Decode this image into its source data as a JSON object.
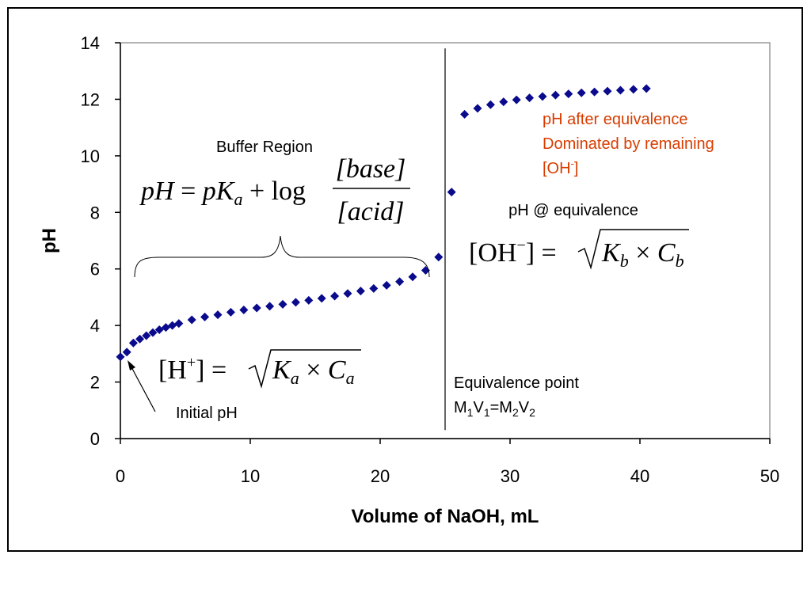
{
  "colors": {
    "series": "#0a0a8c",
    "accent_red": "#d83c00",
    "plot_border": "#9a9a9a",
    "axis": "#000000"
  },
  "chart_data": {
    "type": "scatter",
    "title": "",
    "xlabel": "Volume of NaOH, mL",
    "ylabel": "pH",
    "xlim": [
      0,
      50
    ],
    "ylim": [
      0,
      14
    ],
    "x_ticks": [
      "0",
      "10",
      "20",
      "30",
      "40",
      "50"
    ],
    "y_ticks": [
      "0",
      "2",
      "4",
      "6",
      "8",
      "10",
      "12",
      "14"
    ],
    "grid": false,
    "legend": "none",
    "marker": "diamond",
    "series": [
      {
        "points": [
          [
            0,
            2.89
          ],
          [
            0.5,
            3.06
          ],
          [
            1,
            3.38
          ],
          [
            1.5,
            3.52
          ],
          [
            2,
            3.64
          ],
          [
            2.5,
            3.75
          ],
          [
            3,
            3.85
          ],
          [
            3.5,
            3.93
          ],
          [
            4,
            4.0
          ],
          [
            4.5,
            4.07
          ],
          [
            5.5,
            4.2
          ],
          [
            6.5,
            4.3
          ],
          [
            7.5,
            4.38
          ],
          [
            8.5,
            4.47
          ],
          [
            9.5,
            4.55
          ],
          [
            10.5,
            4.62
          ],
          [
            11.5,
            4.68
          ],
          [
            12.5,
            4.75
          ],
          [
            13.5,
            4.82
          ],
          [
            14.5,
            4.89
          ],
          [
            15.5,
            4.96
          ],
          [
            16.5,
            5.04
          ],
          [
            17.5,
            5.13
          ],
          [
            18.5,
            5.22
          ],
          [
            19.5,
            5.31
          ],
          [
            20.5,
            5.42
          ],
          [
            21.5,
            5.55
          ],
          [
            22.5,
            5.72
          ],
          [
            23.5,
            5.95
          ],
          [
            24.5,
            6.42
          ],
          [
            25.5,
            8.72
          ],
          [
            26.5,
            11.47
          ],
          [
            27.5,
            11.68
          ],
          [
            28.5,
            11.81
          ],
          [
            29.5,
            11.91
          ],
          [
            30.5,
            11.98
          ],
          [
            31.5,
            12.05
          ],
          [
            32.5,
            12.1
          ],
          [
            33.5,
            12.15
          ],
          [
            34.5,
            12.19
          ],
          [
            35.5,
            12.23
          ],
          [
            36.5,
            12.26
          ],
          [
            37.5,
            12.29
          ],
          [
            38.5,
            12.32
          ],
          [
            39.5,
            12.35
          ],
          [
            40.5,
            12.38
          ]
        ]
      }
    ],
    "reference_lines": [
      {
        "orientation": "vertical",
        "x": 25
      }
    ],
    "annotations": {
      "buffer_region": "Buffer Region",
      "initial_ph": "Initial pH",
      "ph_at_equivalence": "pH @ equivalence",
      "equivalence_point": "Equivalence point",
      "after_equivalence_line1": "pH after equivalence",
      "after_equivalence_line2": "Dominated by remaining",
      "after_equivalence_line3_base": "[OH",
      "after_equivalence_line3_sup": "-",
      "after_equivalence_line3_end": "]",
      "molarity_relation": {
        "M1": "M",
        "M1_sub": "1",
        "V1": "V",
        "V1_sub": "1",
        "eq": "=",
        "M2": "M",
        "M2_sub": "2",
        "V2": "V",
        "V2_sub": "2"
      },
      "equations": {
        "henderson": {
          "lhs": "pH",
          "eq": " = ",
          "pK": "pK",
          "pK_sub": "a",
          "plus_log": " + log",
          "numerator": "[base]",
          "denominator": "[acid]"
        },
        "oh_equivalence": {
          "lhs_open": "[OH",
          "lhs_sup": "−",
          "lhs_close": "]",
          "eq": " = ",
          "K": "K",
          "K_sub": "b",
          "times": " × ",
          "C": "C",
          "C_sub": "b"
        },
        "h_initial": {
          "lhs_open": "[H",
          "lhs_sup": "+",
          "lhs_close": "]",
          "eq": " = ",
          "K": "K",
          "K_sub": "a",
          "times": " × ",
          "C": "C",
          "C_sub": "a"
        }
      }
    }
  }
}
